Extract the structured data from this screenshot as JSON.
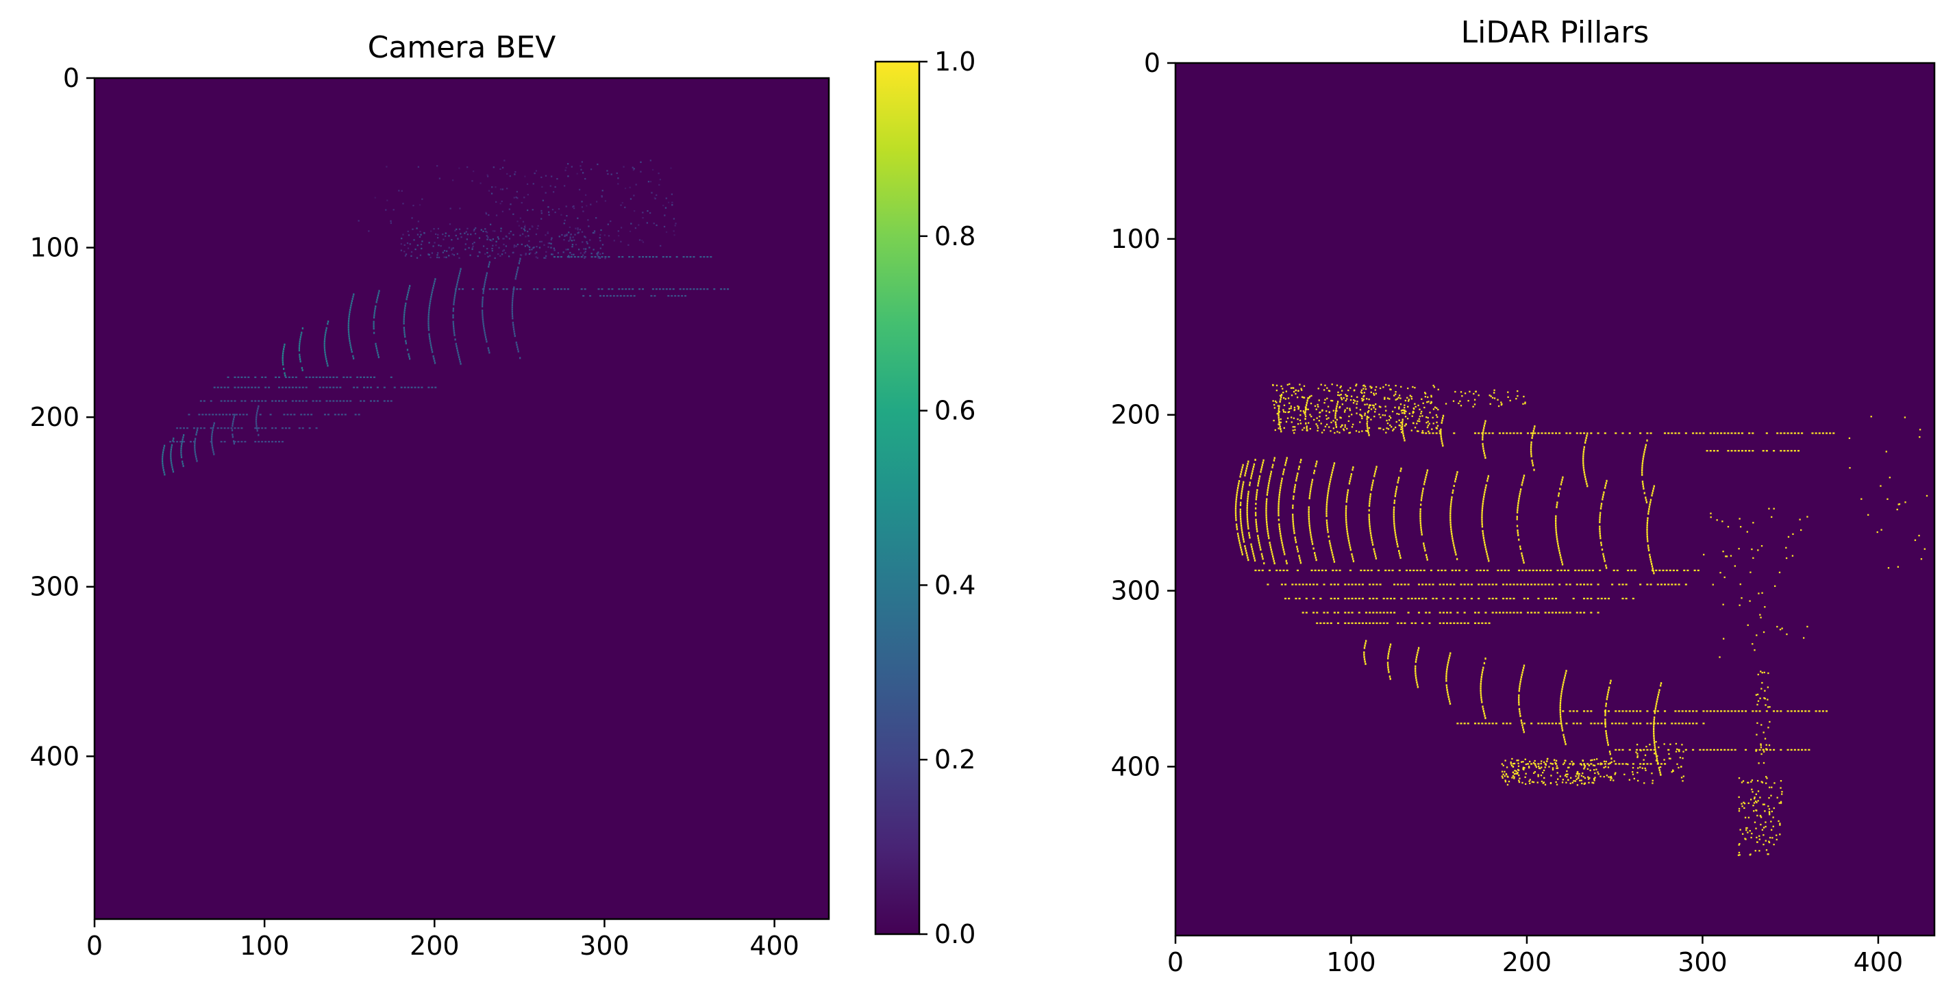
{
  "chart_data": [
    {
      "type": "heatmap",
      "title": "Camera BEV",
      "xlim": [
        0,
        432
      ],
      "ylim": [
        496,
        0
      ],
      "x_ticks": [
        0,
        100,
        200,
        300,
        400
      ],
      "y_ticks": [
        0,
        100,
        200,
        300,
        400
      ],
      "colormap": "viridis",
      "background_value": 0.0,
      "grid": false,
      "features": {
        "ring_arcs": [
          {
            "x": 41,
            "y_from": 215,
            "y_to": 234,
            "value": 0.38
          },
          {
            "x": 46,
            "y_from": 212,
            "y_to": 232,
            "value": 0.36
          },
          {
            "x": 52,
            "y_from": 210,
            "y_to": 229,
            "value": 0.34
          },
          {
            "x": 60,
            "y_from": 207,
            "y_to": 226,
            "value": 0.3
          },
          {
            "x": 70,
            "y_from": 203,
            "y_to": 222,
            "value": 0.28
          },
          {
            "x": 82,
            "y_from": 198,
            "y_to": 216,
            "value": 0.26
          },
          {
            "x": 96,
            "y_from": 193,
            "y_to": 210,
            "value": 0.24
          },
          {
            "x": 112,
            "y_from": 154,
            "y_to": 176,
            "value": 0.45
          },
          {
            "x": 122,
            "y_from": 147,
            "y_to": 172,
            "value": 0.42
          },
          {
            "x": 137,
            "y_from": 143,
            "y_to": 170,
            "value": 0.4
          },
          {
            "x": 152,
            "y_from": 127,
            "y_to": 165,
            "value": 0.38
          },
          {
            "x": 167,
            "y_from": 125,
            "y_to": 165,
            "value": 0.36
          },
          {
            "x": 185,
            "y_from": 122,
            "y_to": 165,
            "value": 0.35
          },
          {
            "x": 200,
            "y_from": 118,
            "y_to": 168,
            "value": 0.32
          },
          {
            "x": 215,
            "y_from": 112,
            "y_to": 168,
            "value": 0.3
          },
          {
            "x": 232,
            "y_from": 108,
            "y_to": 162,
            "value": 0.28
          },
          {
            "x": 250,
            "y_from": 106,
            "y_to": 165,
            "value": 0.26
          }
        ],
        "horizontal_rows": [
          {
            "y": 176,
            "x_from": 78,
            "x_to": 175,
            "value": 0.3
          },
          {
            "y": 182,
            "x_from": 70,
            "x_to": 200,
            "value": 0.28
          },
          {
            "y": 190,
            "x_from": 62,
            "x_to": 175,
            "value": 0.26
          },
          {
            "y": 198,
            "x_from": 55,
            "x_to": 160,
            "value": 0.25
          },
          {
            "y": 206,
            "x_from": 48,
            "x_to": 130,
            "value": 0.24
          },
          {
            "y": 214,
            "x_from": 44,
            "x_to": 110,
            "value": 0.23
          },
          {
            "y": 105,
            "x_from": 270,
            "x_to": 362,
            "value": 0.3
          },
          {
            "y": 124,
            "x_from": 210,
            "x_to": 372,
            "value": 0.28
          },
          {
            "y": 128,
            "x_from": 285,
            "x_to": 348,
            "value": 0.25
          }
        ],
        "scatter_regions": [
          {
            "x_from": 180,
            "x_to": 300,
            "y_from": 88,
            "y_to": 106,
            "count": 260,
            "value_range": [
              0.08,
              0.28
            ]
          },
          {
            "x_from": 230,
            "x_to": 342,
            "y_from": 48,
            "y_to": 100,
            "count": 180,
            "value_range": [
              0.05,
              0.22
            ]
          },
          {
            "x_from": 150,
            "x_to": 290,
            "y_from": 50,
            "y_to": 90,
            "count": 60,
            "value_range": [
              0.05,
              0.15
            ]
          }
        ]
      }
    },
    {
      "type": "colorbar",
      "colormap": "viridis",
      "range": [
        0.0,
        1.0
      ],
      "ticks": [
        0.0,
        0.2,
        0.4,
        0.6,
        0.8,
        1.0
      ],
      "tick_labels": [
        "0.0",
        "0.2",
        "0.4",
        "0.6",
        "0.8",
        "1.0"
      ]
    },
    {
      "type": "heatmap",
      "title": "LiDAR Pillars",
      "xlim": [
        0,
        432
      ],
      "ylim": [
        496,
        0
      ],
      "x_ticks": [
        0,
        100,
        200,
        300,
        400
      ],
      "y_ticks": [
        0,
        100,
        200,
        300,
        400
      ],
      "colormap": "viridis",
      "background_value": 0.0,
      "occupied_value": 1.0,
      "grid": false,
      "features": {
        "ring_arcs": [
          {
            "x": 38,
            "y_from": 228,
            "y_to": 280
          },
          {
            "x": 41,
            "y_from": 226,
            "y_to": 282
          },
          {
            "x": 45,
            "y_from": 225,
            "y_to": 283
          },
          {
            "x": 50,
            "y_from": 224,
            "y_to": 284
          },
          {
            "x": 56,
            "y_from": 224,
            "y_to": 284
          },
          {
            "x": 63,
            "y_from": 224,
            "y_to": 284
          },
          {
            "x": 71,
            "y_from": 225,
            "y_to": 284
          },
          {
            "x": 80,
            "y_from": 226,
            "y_to": 283
          },
          {
            "x": 90,
            "y_from": 227,
            "y_to": 283
          },
          {
            "x": 101,
            "y_from": 228,
            "y_to": 283
          },
          {
            "x": 114,
            "y_from": 229,
            "y_to": 282
          },
          {
            "x": 128,
            "y_from": 230,
            "y_to": 282
          },
          {
            "x": 143,
            "y_from": 231,
            "y_to": 282
          },
          {
            "x": 160,
            "y_from": 232,
            "y_to": 282
          },
          {
            "x": 178,
            "y_from": 233,
            "y_to": 283
          },
          {
            "x": 198,
            "y_from": 234,
            "y_to": 284
          },
          {
            "x": 220,
            "y_from": 235,
            "y_to": 285
          },
          {
            "x": 245,
            "y_from": 237,
            "y_to": 287
          },
          {
            "x": 272,
            "y_from": 240,
            "y_to": 290
          },
          {
            "x": 60,
            "y_from": 188,
            "y_to": 210
          },
          {
            "x": 75,
            "y_from": 190,
            "y_to": 210
          },
          {
            "x": 92,
            "y_from": 192,
            "y_to": 210
          },
          {
            "x": 110,
            "y_from": 194,
            "y_to": 212
          },
          {
            "x": 130,
            "y_from": 197,
            "y_to": 214
          },
          {
            "x": 152,
            "y_from": 200,
            "y_to": 218
          },
          {
            "x": 176,
            "y_from": 203,
            "y_to": 224
          },
          {
            "x": 204,
            "y_from": 206,
            "y_to": 232
          },
          {
            "x": 234,
            "y_from": 210,
            "y_to": 240
          },
          {
            "x": 268,
            "y_from": 214,
            "y_to": 250
          },
          {
            "x": 108,
            "y_from": 328,
            "y_to": 342
          },
          {
            "x": 122,
            "y_from": 330,
            "y_to": 350
          },
          {
            "x": 138,
            "y_from": 332,
            "y_to": 356
          },
          {
            "x": 156,
            "y_from": 335,
            "y_to": 364
          },
          {
            "x": 176,
            "y_from": 338,
            "y_to": 372
          },
          {
            "x": 198,
            "y_from": 342,
            "y_to": 380
          },
          {
            "x": 222,
            "y_from": 345,
            "y_to": 388
          },
          {
            "x": 248,
            "y_from": 348,
            "y_to": 396
          },
          {
            "x": 276,
            "y_from": 352,
            "y_to": 405
          }
        ],
        "horizontal_rows": [
          {
            "y": 210,
            "x_from": 140,
            "x_to": 375
          },
          {
            "y": 220,
            "x_from": 300,
            "x_to": 355
          },
          {
            "y": 288,
            "x_from": 45,
            "x_to": 300
          },
          {
            "y": 296,
            "x_from": 50,
            "x_to": 290
          },
          {
            "y": 304,
            "x_from": 60,
            "x_to": 260
          },
          {
            "y": 312,
            "x_from": 70,
            "x_to": 240
          },
          {
            "y": 318,
            "x_from": 80,
            "x_to": 180
          },
          {
            "y": 368,
            "x_from": 220,
            "x_to": 370
          },
          {
            "y": 375,
            "x_from": 160,
            "x_to": 300
          },
          {
            "y": 390,
            "x_from": 250,
            "x_to": 360
          },
          {
            "y": 398,
            "x_from": 200,
            "x_to": 280
          }
        ],
        "scatter_regions": [
          {
            "x_from": 55,
            "x_to": 150,
            "y_from": 182,
            "y_to": 210,
            "count": 420
          },
          {
            "x_from": 150,
            "x_to": 200,
            "y_from": 185,
            "y_to": 195,
            "count": 40
          },
          {
            "x_from": 185,
            "x_to": 250,
            "y_from": 395,
            "y_to": 410,
            "count": 220
          },
          {
            "x_from": 255,
            "x_to": 290,
            "y_from": 385,
            "y_to": 410,
            "count": 60
          },
          {
            "x_from": 320,
            "x_to": 345,
            "y_from": 405,
            "y_to": 450,
            "count": 120
          },
          {
            "x_from": 330,
            "x_to": 338,
            "y_from": 345,
            "y_to": 400,
            "count": 40
          },
          {
            "x_from": 300,
            "x_to": 360,
            "y_from": 250,
            "y_to": 340,
            "count": 60
          },
          {
            "x_from": 380,
            "x_to": 432,
            "y_from": 200,
            "y_to": 290,
            "count": 25
          }
        ]
      }
    }
  ]
}
